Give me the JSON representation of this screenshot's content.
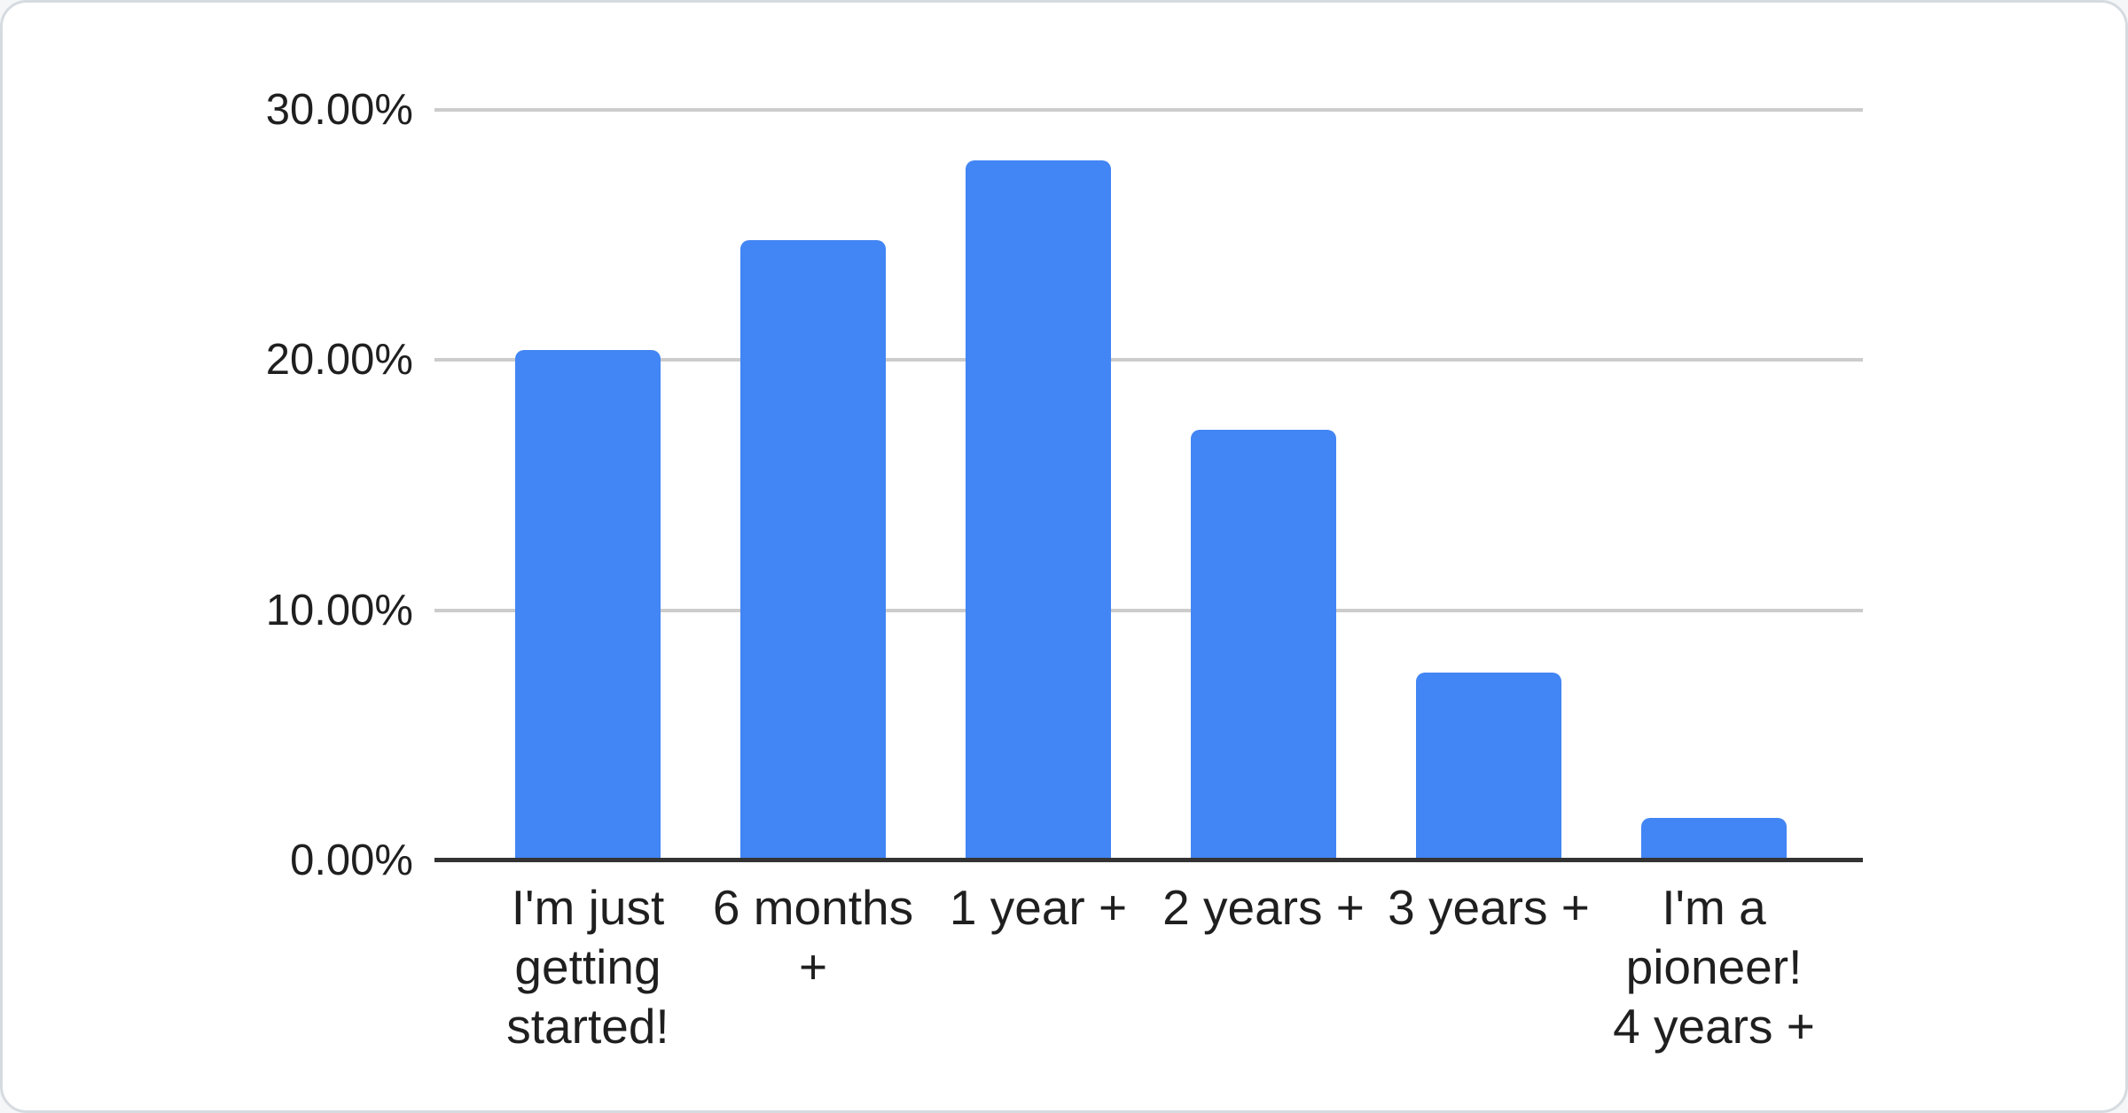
{
  "chart_data": {
    "type": "bar",
    "title": "",
    "xlabel": "",
    "ylabel": "",
    "categories": [
      "I'm just\ngetting\nstarted!",
      "6 months\n+",
      "1 year +",
      "2 years +",
      "3 years +",
      "I'm a\npioneer!\n4 years +"
    ],
    "values": [
      20.4,
      24.8,
      28.0,
      17.2,
      7.5,
      1.7
    ],
    "value_unit": "%",
    "ylim": [
      0,
      30
    ],
    "y_ticks": [
      {
        "value": 0,
        "label": "0.00%"
      },
      {
        "value": 10,
        "label": "10.00%"
      },
      {
        "value": 20,
        "label": "20.00%"
      },
      {
        "value": 30,
        "label": "30.00%"
      }
    ],
    "grid": true,
    "legend": "none",
    "colors": {
      "bar": "#4285f4",
      "gridline": "#cccccc",
      "axis_line": "#333333",
      "label_text": "#1f1f1f",
      "card_background": "#ffffff",
      "card_border": "#d6dbe0"
    }
  }
}
